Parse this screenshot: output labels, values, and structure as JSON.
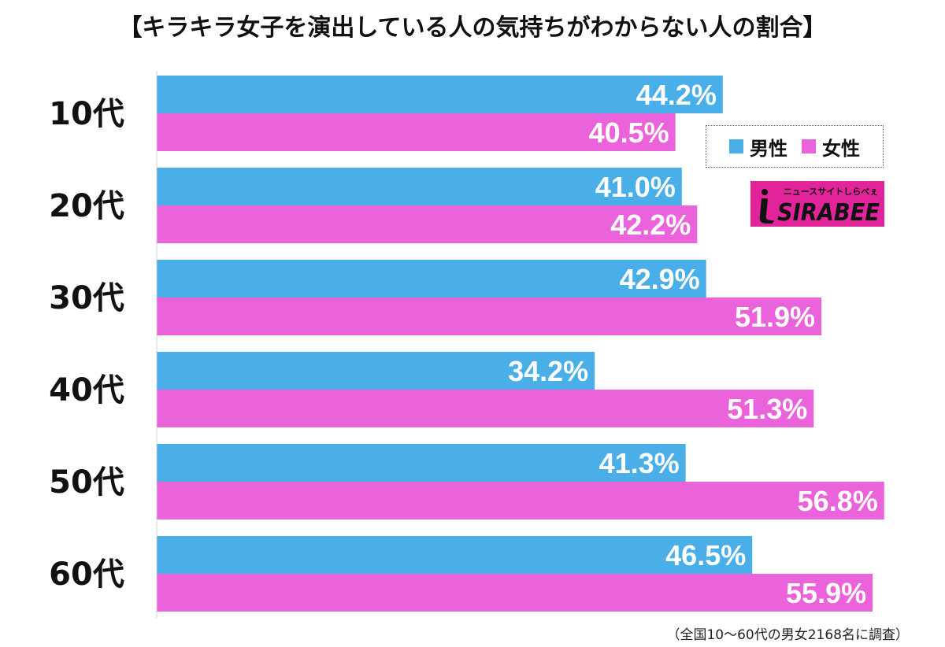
{
  "chart_data": {
    "type": "bar",
    "orientation": "horizontal",
    "title": "【キラキラ女子を演出している人の気持ちがわからない人の割合】",
    "categories": [
      "10代",
      "20代",
      "30代",
      "40代",
      "50代",
      "60代"
    ],
    "series": [
      {
        "name": "男性",
        "color": "#4aaee9",
        "values": [
          44.2,
          41.0,
          42.9,
          34.2,
          41.3,
          46.5
        ],
        "labels": [
          "44.2%",
          "41.0%",
          "42.9%",
          "34.2%",
          "41.3%",
          "46.5%"
        ]
      },
      {
        "name": "女性",
        "color": "#ea63db",
        "values": [
          40.5,
          42.2,
          51.9,
          51.3,
          56.8,
          55.9
        ],
        "labels": [
          "40.5%",
          "42.2%",
          "51.9%",
          "51.3%",
          "56.8%",
          "55.9%"
        ]
      }
    ],
    "xlim": [
      0,
      57
    ],
    "legend": "top-right",
    "xlabel": "",
    "ylabel": ""
  },
  "legend": {
    "male": "男性",
    "female": "女性"
  },
  "logo": {
    "brand": "SIRABEE",
    "tagline": "ニュースサイトしらべぇ",
    "color": "#e2249a"
  },
  "footnote": "（全国10～60代の男女2168名に調査）"
}
